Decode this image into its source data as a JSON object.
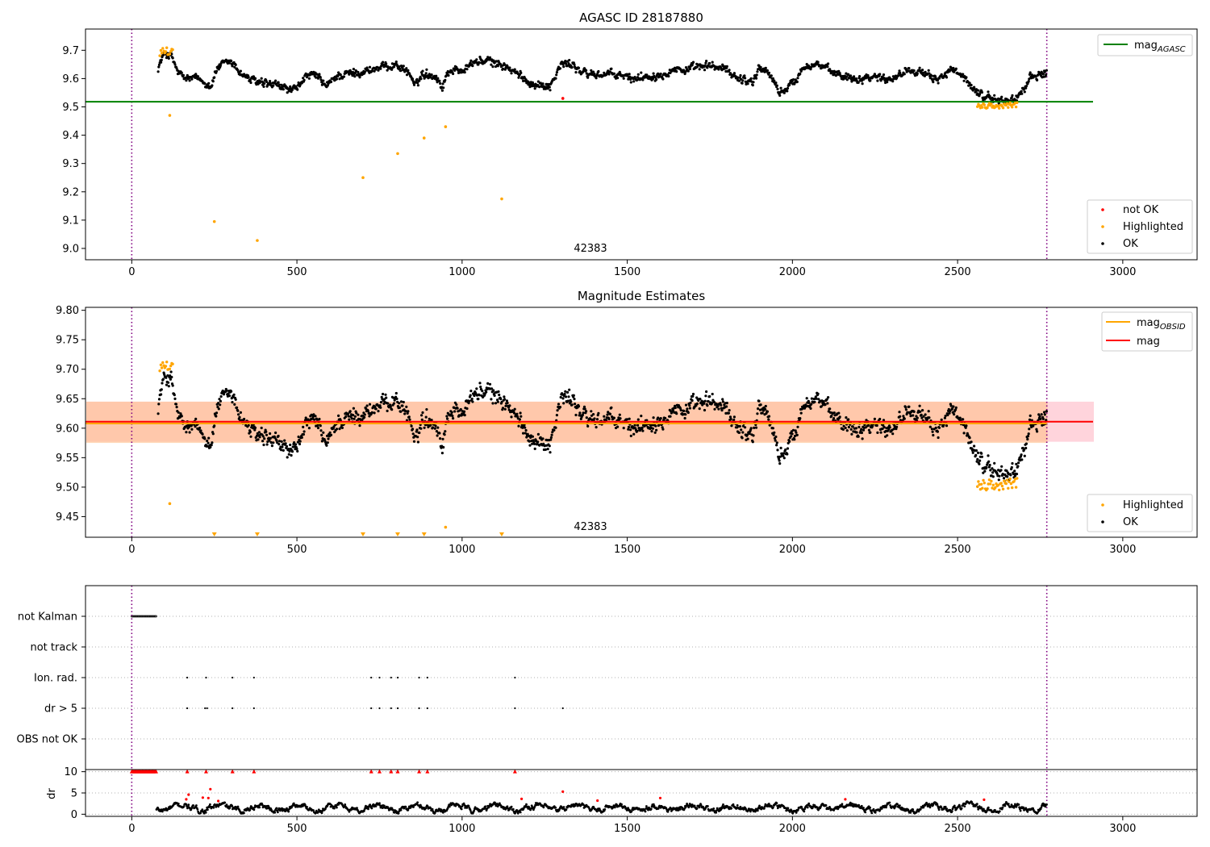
{
  "chart_data": [
    {
      "type": "scatter",
      "title": "AGASC ID 28187880",
      "annotation": "42383",
      "xlim": [
        -140,
        3225
      ],
      "ylim": [
        8.96,
        9.775
      ],
      "xticks": [
        0,
        500,
        1000,
        1500,
        2000,
        2500,
        3000
      ],
      "yticks": [
        9.0,
        9.1,
        9.2,
        9.3,
        9.4,
        9.5,
        9.6,
        9.7
      ],
      "vlines": [
        0,
        2770
      ],
      "reference_lines": [
        {
          "name": "mag",
          "sub": "AGASC",
          "y": 9.518,
          "x_end": 2910,
          "color": "#008000"
        }
      ],
      "legend_lines": [
        {
          "name": "mag",
          "sub": "AGASC",
          "color": "#008000"
        }
      ],
      "legend_points": [
        {
          "name": "not OK",
          "color": "#ff0000"
        },
        {
          "name": "Highlighted",
          "color": "#ffa500"
        },
        {
          "name": "OK",
          "color": "#000000"
        }
      ],
      "highlighted_outliers": [
        [
          115,
          9.47
        ],
        [
          250,
          9.095
        ],
        [
          380,
          9.028
        ],
        [
          700,
          9.25
        ],
        [
          805,
          9.335
        ],
        [
          885,
          9.39
        ],
        [
          950,
          9.43
        ],
        [
          1120,
          9.175
        ]
      ],
      "not_ok_points": [
        [
          1305,
          9.53
        ]
      ],
      "highlighted_clusters": [
        [
          85,
          125,
          9.695,
          0.015
        ],
        [
          2560,
          2680,
          9.505,
          0.01
        ]
      ],
      "ok_trend": [
        [
          80,
          9.64
        ],
        [
          100,
          9.69
        ],
        [
          120,
          9.68
        ],
        [
          140,
          9.62
        ],
        [
          160,
          9.6
        ],
        [
          200,
          9.6
        ],
        [
          240,
          9.575
        ],
        [
          260,
          9.64
        ],
        [
          300,
          9.66
        ],
        [
          330,
          9.62
        ],
        [
          360,
          9.595
        ],
        [
          400,
          9.58
        ],
        [
          440,
          9.575
        ],
        [
          480,
          9.56
        ],
        [
          500,
          9.56
        ],
        [
          520,
          9.605
        ],
        [
          560,
          9.61
        ],
        [
          590,
          9.57
        ],
        [
          620,
          9.61
        ],
        [
          700,
          9.625
        ],
        [
          760,
          9.64
        ],
        [
          800,
          9.65
        ],
        [
          840,
          9.62
        ],
        [
          860,
          9.57
        ],
        [
          880,
          9.62
        ],
        [
          920,
          9.61
        ],
        [
          940,
          9.57
        ],
        [
          960,
          9.63
        ],
        [
          1000,
          9.63
        ],
        [
          1040,
          9.66
        ],
        [
          1080,
          9.66
        ],
        [
          1120,
          9.65
        ],
        [
          1160,
          9.62
        ],
        [
          1200,
          9.59
        ],
        [
          1240,
          9.575
        ],
        [
          1270,
          9.58
        ],
        [
          1300,
          9.65
        ],
        [
          1340,
          9.65
        ],
        [
          1360,
          9.62
        ],
        [
          1400,
          9.615
        ],
        [
          1440,
          9.615
        ],
        [
          1480,
          9.61
        ],
        [
          1520,
          9.6
        ],
        [
          1560,
          9.61
        ],
        [
          1600,
          9.615
        ],
        [
          1640,
          9.635
        ],
        [
          1680,
          9.63
        ],
        [
          1720,
          9.64
        ],
        [
          1760,
          9.645
        ],
        [
          1800,
          9.63
        ],
        [
          1840,
          9.6
        ],
        [
          1880,
          9.59
        ],
        [
          1900,
          9.64
        ],
        [
          1930,
          9.62
        ],
        [
          1960,
          9.55
        ],
        [
          2000,
          9.58
        ],
        [
          2040,
          9.65
        ],
        [
          2080,
          9.65
        ],
        [
          2120,
          9.62
        ],
        [
          2160,
          9.61
        ],
        [
          2200,
          9.6
        ],
        [
          2240,
          9.61
        ],
        [
          2280,
          9.6
        ],
        [
          2320,
          9.61
        ],
        [
          2360,
          9.64
        ],
        [
          2400,
          9.61
        ],
        [
          2440,
          9.6
        ],
        [
          2480,
          9.63
        ],
        [
          2520,
          9.6
        ],
        [
          2560,
          9.55
        ],
        [
          2600,
          9.53
        ],
        [
          2640,
          9.52
        ],
        [
          2680,
          9.53
        ],
        [
          2720,
          9.6
        ],
        [
          2770,
          9.625
        ]
      ]
    },
    {
      "type": "scatter",
      "title": "Magnitude Estimates",
      "annotation": "42383",
      "xlim": [
        -140,
        3225
      ],
      "ylim": [
        9.415,
        9.805
      ],
      "xticks": [
        0,
        500,
        1000,
        1500,
        2000,
        2500,
        3000
      ],
      "yticks": [
        9.45,
        9.5,
        9.55,
        9.6,
        9.65,
        9.7,
        9.75,
        9.8
      ],
      "vlines": [
        0,
        2770
      ],
      "bands": [
        {
          "y0": 9.577,
          "y1": 9.645,
          "x_end": 2910,
          "color": "#ffb0c0"
        },
        {
          "y0": 9.575,
          "y1": 9.645,
          "x_end": 2770,
          "color": "#ffbf8a"
        }
      ],
      "reference_lines": [
        {
          "name": "mag",
          "sub": "OBSID",
          "y": 9.608,
          "x_end": 2770,
          "color": "#ffa500"
        },
        {
          "name": "mag",
          "sub": "",
          "y": 9.611,
          "x_end": 2910,
          "color": "#ff0000"
        }
      ],
      "legend_lines": [
        {
          "name": "mag",
          "sub": "OBSID",
          "color": "#ffa500"
        },
        {
          "name": "mag",
          "sub": "",
          "color": "#ff0000"
        }
      ],
      "legend_points": [
        {
          "name": "Highlighted",
          "color": "#ffa500"
        },
        {
          "name": "OK",
          "color": "#000000"
        }
      ],
      "highlighted_outliers": [
        [
          115,
          9.472
        ],
        [
          950,
          9.432
        ]
      ],
      "below_limit_markers": [
        250,
        380,
        700,
        805,
        885,
        1120
      ],
      "highlighted_clusters": [
        [
          85,
          125,
          9.705,
          0.008
        ],
        [
          2560,
          2680,
          9.505,
          0.01
        ]
      ],
      "ok_trend": [
        [
          80,
          9.64
        ],
        [
          100,
          9.69
        ],
        [
          120,
          9.68
        ],
        [
          140,
          9.62
        ],
        [
          160,
          9.6
        ],
        [
          200,
          9.6
        ],
        [
          240,
          9.575
        ],
        [
          260,
          9.64
        ],
        [
          300,
          9.66
        ],
        [
          330,
          9.62
        ],
        [
          360,
          9.595
        ],
        [
          400,
          9.58
        ],
        [
          440,
          9.575
        ],
        [
          480,
          9.56
        ],
        [
          500,
          9.56
        ],
        [
          520,
          9.605
        ],
        [
          560,
          9.61
        ],
        [
          590,
          9.57
        ],
        [
          620,
          9.61
        ],
        [
          700,
          9.625
        ],
        [
          760,
          9.64
        ],
        [
          800,
          9.65
        ],
        [
          840,
          9.62
        ],
        [
          860,
          9.57
        ],
        [
          880,
          9.62
        ],
        [
          920,
          9.61
        ],
        [
          940,
          9.57
        ],
        [
          960,
          9.63
        ],
        [
          1000,
          9.63
        ],
        [
          1040,
          9.66
        ],
        [
          1080,
          9.66
        ],
        [
          1120,
          9.65
        ],
        [
          1160,
          9.62
        ],
        [
          1200,
          9.59
        ],
        [
          1240,
          9.575
        ],
        [
          1270,
          9.58
        ],
        [
          1300,
          9.65
        ],
        [
          1340,
          9.65
        ],
        [
          1360,
          9.62
        ],
        [
          1400,
          9.615
        ],
        [
          1440,
          9.615
        ],
        [
          1480,
          9.61
        ],
        [
          1520,
          9.6
        ],
        [
          1560,
          9.61
        ],
        [
          1600,
          9.615
        ],
        [
          1640,
          9.635
        ],
        [
          1680,
          9.63
        ],
        [
          1720,
          9.64
        ],
        [
          1760,
          9.645
        ],
        [
          1800,
          9.63
        ],
        [
          1840,
          9.6
        ],
        [
          1880,
          9.59
        ],
        [
          1900,
          9.64
        ],
        [
          1930,
          9.62
        ],
        [
          1960,
          9.55
        ],
        [
          2000,
          9.58
        ],
        [
          2040,
          9.65
        ],
        [
          2080,
          9.65
        ],
        [
          2120,
          9.62
        ],
        [
          2160,
          9.61
        ],
        [
          2200,
          9.6
        ],
        [
          2240,
          9.61
        ],
        [
          2280,
          9.6
        ],
        [
          2320,
          9.61
        ],
        [
          2360,
          9.64
        ],
        [
          2400,
          9.61
        ],
        [
          2440,
          9.6
        ],
        [
          2480,
          9.63
        ],
        [
          2520,
          9.6
        ],
        [
          2560,
          9.55
        ],
        [
          2600,
          9.53
        ],
        [
          2640,
          9.52
        ],
        [
          2680,
          9.53
        ],
        [
          2720,
          9.6
        ],
        [
          2770,
          9.625
        ]
      ]
    },
    {
      "type": "scatter",
      "xlim": [
        -140,
        3225
      ],
      "vlines": [
        0,
        2770
      ],
      "flag_rows": [
        "not Kalman",
        "not track",
        "Ion. rad.",
        "dr > 5",
        "OBS not OK"
      ],
      "flags": {
        "not Kalman": {
          "ranges": [
            [
              0,
              75
            ]
          ],
          "points": []
        },
        "not track": {
          "ranges": [],
          "points": []
        },
        "Ion. rad.": {
          "ranges": [],
          "points": [
            168,
            225,
            305,
            370,
            725,
            750,
            785,
            805,
            870,
            895,
            1160
          ]
        },
        "dr > 5": {
          "ranges": [],
          "points": [
            168,
            222,
            228,
            305,
            370,
            725,
            750,
            785,
            805,
            870,
            895,
            1160,
            1305
          ]
        },
        "OBS not OK": {
          "ranges": [],
          "points": []
        }
      },
      "dr": {
        "ylabel": "dr",
        "ylim": [
          -0.5,
          10.5
        ],
        "yticks": [
          0,
          5,
          10
        ],
        "clipped_at": 10,
        "clipped_ranges": [
          [
            0,
            75
          ]
        ],
        "clipped_points": [
          168,
          225,
          305,
          370,
          725,
          750,
          785,
          805,
          870,
          895,
          1160
        ],
        "red_points": [
          [
            165,
            3.5
          ],
          [
            172,
            4.6
          ],
          [
            215,
            3.9
          ],
          [
            232,
            3.8
          ],
          [
            238,
            5.9
          ],
          [
            262,
            3.1
          ],
          [
            1305,
            5.3
          ],
          [
            1180,
            3.6
          ],
          [
            1600,
            3.8
          ],
          [
            1410,
            3.2
          ],
          [
            2160,
            3.5
          ],
          [
            2580,
            3.4
          ]
        ],
        "series_start": 75,
        "series_end": 2770,
        "base": 1.5,
        "amplitude": 1.2
      }
    }
  ]
}
